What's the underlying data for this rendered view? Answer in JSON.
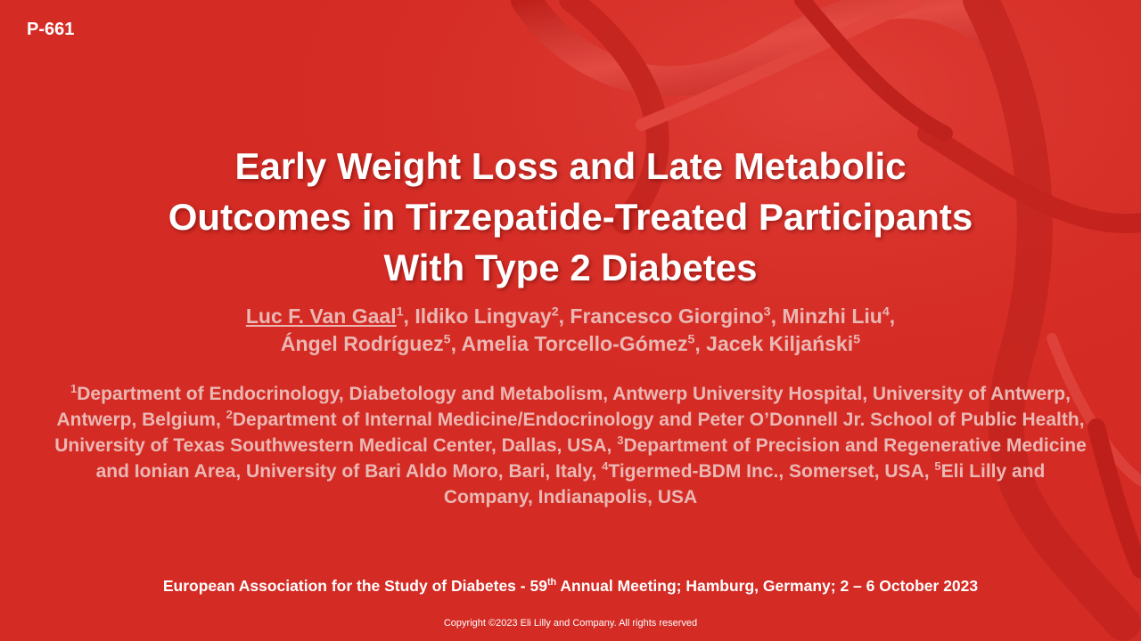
{
  "poster_id": "P-661",
  "title": {
    "line1": "Early Weight Loss and Late Metabolic",
    "line2": "Outcomes in Tirzepatide-Treated Participants",
    "line3": "With Type 2 Diabetes"
  },
  "authors": [
    {
      "name": "Luc F. Van Gaal",
      "sup": "1",
      "sep": ", "
    },
    {
      "name": "Ildiko Lingvay",
      "sup": "2",
      "sep": ", "
    },
    {
      "name": "Francesco Giorgino",
      "sup": "3",
      "sep": ", "
    },
    {
      "name": "Minzhi Liu",
      "sup": "4",
      "sep": ","
    },
    {
      "name": "Ángel Rodríguez",
      "sup": "5",
      "sep": ", "
    },
    {
      "name": "Amelia Torcello-Gómez",
      "sup": "5",
      "sep": ", "
    },
    {
      "name": "Jacek Kiljański",
      "sup": "5",
      "sep": ""
    }
  ],
  "affiliations": [
    {
      "sup": "1",
      "text": "Department of Endocrinology, Diabetology and Metabolism, Antwerp University Hospital, University of Antwerp, Antwerp, Belgium, "
    },
    {
      "sup": "2",
      "text": "Department of Internal Medicine/Endocrinology and Peter O’Donnell Jr. School of Public Health, University of Texas Southwestern Medical Center, Dallas, USA, "
    },
    {
      "sup": "3",
      "text": "Department of Precision and Regenerative Medicine and Ionian Area, University of Bari Aldo Moro, Bari, Italy, "
    },
    {
      "sup": "4",
      "text": "Tigermed-BDM Inc., Somerset, USA, "
    },
    {
      "sup": "5",
      "text": "Eli Lilly and Company, Indianapolis, USA"
    }
  ],
  "meeting": {
    "pre": "European Association for the Study of Diabetes - 59",
    "sup": "th",
    "post": " Annual Meeting; Hamburg, Germany; 2 – 6 October 2023"
  },
  "copyright": "Copyright ©2023 Eli Lilly and Company. All rights reserved",
  "colors": {
    "background": "#d42b24",
    "text_primary": "#ffffff",
    "text_secondary": "#eab8b4"
  }
}
